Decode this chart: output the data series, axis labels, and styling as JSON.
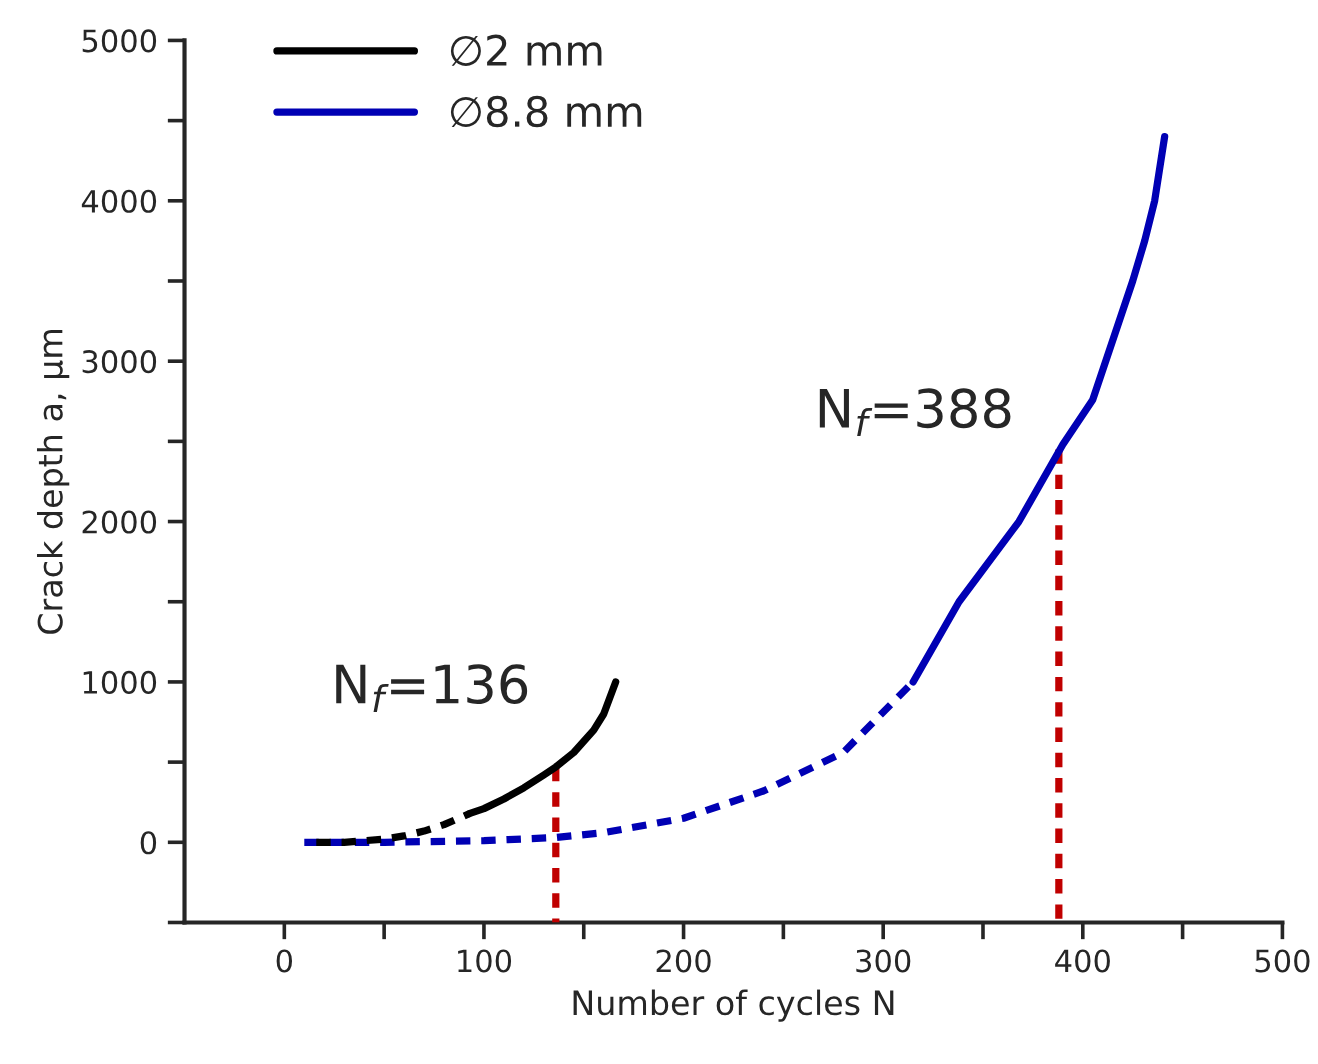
{
  "chart_data": {
    "type": "line",
    "xlabel": "Number of cycles N",
    "ylabel": "Crack depth a, μm",
    "xlim": [
      -50,
      500
    ],
    "ylim": [
      -500,
      5000
    ],
    "xticks": [
      0,
      {
        "value": 50,
        "label": null
      },
      100,
      {
        "value": 150,
        "label": null
      },
      200,
      {
        "value": 250,
        "label": null
      },
      300,
      {
        "value": 350,
        "label": null
      },
      400,
      {
        "value": 450,
        "label": null
      },
      500
    ],
    "yticks": [
      {
        "value": -500,
        "label": null
      },
      0,
      {
        "value": 500,
        "label": null
      },
      1000,
      {
        "value": 1500,
        "label": null
      },
      2000,
      {
        "value": 2500,
        "label": null
      },
      3000,
      {
        "value": 3500,
        "label": null
      },
      4000,
      {
        "value": 4500,
        "label": null
      },
      5000
    ],
    "grid": false,
    "legend": "top left",
    "series": [
      {
        "name": "∅2 mm",
        "color": "#000000",
        "line_style": "solid",
        "x": [
          93,
          100,
          110,
          120,
          130,
          136,
          145,
          155,
          160,
          166
        ],
        "values": [
          180,
          210,
          270,
          340,
          420,
          470,
          560,
          700,
          800,
          1000
        ]
      },
      {
        "color": "#000000",
        "line_style": "dashed",
        "x": [
          16,
          30,
          40,
          50,
          60,
          70,
          80,
          93
        ],
        "values": [
          0,
          0,
          10,
          20,
          40,
          70,
          110,
          180
        ]
      },
      {
        "name": "∅8.8 mm",
        "color": "#0000b4",
        "line_style": "solid",
        "x": [
          315,
          338,
          368,
          390,
          405,
          425,
          431,
          436,
          441
        ],
        "values": [
          1000,
          1500,
          2000,
          2480,
          2760,
          3500,
          3750,
          4000,
          4400
        ]
      },
      {
        "color": "#0000b4",
        "line_style": "dashed",
        "x": [
          10,
          50,
          100,
          136,
          160,
          200,
          240,
          280,
          315
        ],
        "values": [
          0,
          0,
          10,
          30,
          60,
          150,
          320,
          560,
          1000
        ]
      },
      {
        "color": "#c00000",
        "line_style": "dashed",
        "x": [
          136,
          136
        ],
        "values": [
          470,
          -500
        ]
      },
      {
        "color": "#c00000",
        "line_style": "dashed",
        "x": [
          388,
          388
        ],
        "values": [
          2450,
          -500
        ]
      }
    ],
    "annotations": [
      {
        "text": "N$_{f}$=136",
        "x": 136,
        "y": 470
      },
      {
        "text": "N$_{f}$=388",
        "x": 388,
        "y": 2450
      }
    ]
  }
}
